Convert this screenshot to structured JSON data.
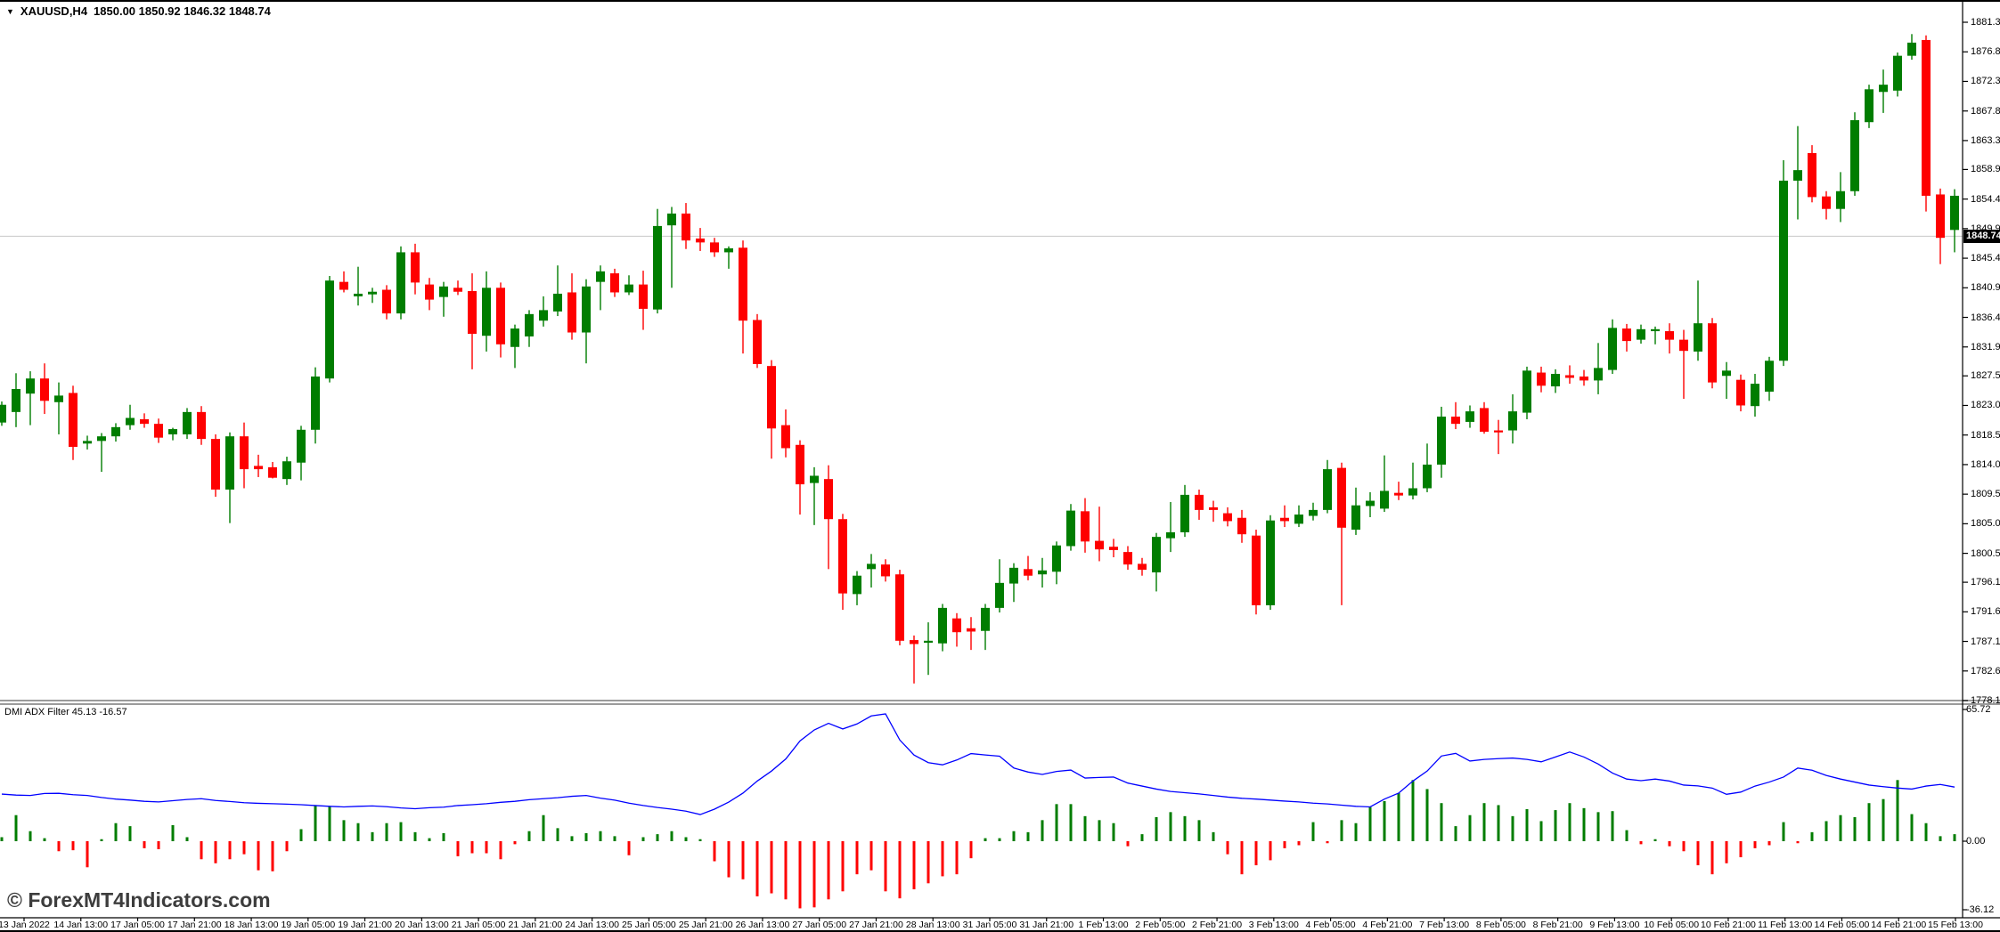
{
  "header": {
    "dropdown_icon": "▼",
    "symbol_label": "XAUUSD,H4",
    "ohlc": "1850.00 1850.92 1846.32 1848.74"
  },
  "watermark": {
    "text": "© ForexMT4Indicators.com"
  },
  "indicator_panel": {
    "label": "DMI ADX Filter",
    "adx_value": "45.13",
    "dmi_value": "-16.57",
    "axis_ticks": [
      "65.72",
      "0.00",
      "-36.12"
    ]
  },
  "price_axis": {
    "current_price_label": "1848.74",
    "ticks": [
      "1881.30",
      "1876.80",
      "1872.30",
      "1867.80",
      "1863.30",
      "1858.90",
      "1854.40",
      "1849.90",
      "1845.40",
      "1840.90",
      "1836.40",
      "1831.90",
      "1827.50",
      "1823.00",
      "1818.50",
      "1814.00",
      "1809.50",
      "1805.00",
      "1800.50",
      "1796.10",
      "1791.60",
      "1787.10",
      "1782.60",
      "1778.10"
    ]
  },
  "time_axis": {
    "ticks": [
      "13 Jan 2022",
      "14 Jan 13:00",
      "17 Jan 05:00",
      "17 Jan 21:00",
      "18 Jan 13:00",
      "19 Jan 05:00",
      "19 Jan 21:00",
      "20 Jan 13:00",
      "21 Jan 05:00",
      "21 Jan 21:00",
      "24 Jan 13:00",
      "25 Jan 05:00",
      "25 Jan 21:00",
      "26 Jan 13:00",
      "27 Jan 05:00",
      "27 Jan 21:00",
      "28 Jan 13:00",
      "31 Jan 05:00",
      "31 Jan 21:00",
      "1 Feb 13:00",
      "2 Feb 05:00",
      "2 Feb 21:00",
      "3 Feb 13:00",
      "4 Feb 05:00",
      "4 Feb 21:00",
      "7 Feb 13:00",
      "8 Feb 05:00",
      "8 Feb 21:00",
      "9 Feb 13:00",
      "10 Feb 05:00",
      "10 Feb 21:00",
      "11 Feb 13:00",
      "14 Feb 05:00",
      "14 Feb 21:00",
      "15 Feb 13:00"
    ]
  },
  "colors": {
    "bull": "#007d00",
    "bear": "#fe0000",
    "adx_line": "#0000ff",
    "dmi_pos": "#007d00",
    "dmi_neg": "#fe0000",
    "current_price_line": "#c8c8c8",
    "axis_line": "#000000",
    "separator": "#7a7a7a"
  },
  "chart_data": {
    "type": "candlestick",
    "title": "XAUUSD,H4 1850.00 1850.92 1846.32 1848.74",
    "symbol": "XAUUSD",
    "timeframe": "H4",
    "current_bar": {
      "open": 1850.0,
      "high": 1850.92,
      "low": 1846.32,
      "close": 1848.74
    },
    "current_price": 1848.74,
    "price_axis_range": [
      1778.1,
      1881.3
    ],
    "indicator_axis_range": [
      -36.12,
      65.72
    ],
    "indicator_name": "DMI ADX Filter",
    "indicator_values": [
      45.13,
      -16.57
    ],
    "legend_position": "top-left",
    "grid": false,
    "candles": [
      [
        1820.4,
        1823.6,
        1819.9,
        1823.1
      ],
      [
        1822.0,
        1827.9,
        1819.7,
        1825.5
      ],
      [
        1824.8,
        1828.2,
        1820.0,
        1827.1
      ],
      [
        1827.1,
        1829.4,
        1821.7,
        1823.7
      ],
      [
        1823.5,
        1826.5,
        1818.6,
        1824.5
      ],
      [
        1824.9,
        1826.0,
        1814.7,
        1816.7
      ],
      [
        1817.2,
        1818.4,
        1816.3,
        1817.6
      ],
      [
        1817.6,
        1818.8,
        1812.9,
        1818.3
      ],
      [
        1818.3,
        1820.3,
        1817.5,
        1819.7
      ],
      [
        1820.0,
        1823.1,
        1819.3,
        1821.1
      ],
      [
        1820.9,
        1821.8,
        1819.6,
        1820.2
      ],
      [
        1820.2,
        1821.0,
        1817.3,
        1818.1
      ],
      [
        1818.6,
        1819.6,
        1817.7,
        1819.4
      ],
      [
        1818.6,
        1822.6,
        1817.9,
        1822.0
      ],
      [
        1822.0,
        1822.9,
        1817.0,
        1817.9
      ],
      [
        1817.9,
        1818.6,
        1809.1,
        1810.2
      ],
      [
        1810.2,
        1818.9,
        1805.1,
        1818.3
      ],
      [
        1818.3,
        1820.4,
        1810.4,
        1813.3
      ],
      [
        1813.8,
        1815.5,
        1812.1,
        1813.3
      ],
      [
        1813.6,
        1814.4,
        1811.9,
        1812.0
      ],
      [
        1811.8,
        1815.2,
        1810.9,
        1814.5
      ],
      [
        1814.3,
        1819.9,
        1811.6,
        1819.3
      ],
      [
        1819.3,
        1828.8,
        1817.2,
        1827.4
      ],
      [
        1827.1,
        1842.7,
        1826.5,
        1842.0
      ],
      [
        1841.8,
        1843.4,
        1840.2,
        1840.6
      ],
      [
        1839.6,
        1844.1,
        1838.2,
        1840.0
      ],
      [
        1839.9,
        1840.9,
        1838.6,
        1840.3
      ],
      [
        1840.6,
        1841.3,
        1836.1,
        1837.0
      ],
      [
        1837.0,
        1847.2,
        1836.1,
        1846.3
      ],
      [
        1846.3,
        1847.6,
        1839.9,
        1841.7
      ],
      [
        1841.4,
        1842.4,
        1837.5,
        1839.1
      ],
      [
        1839.5,
        1841.8,
        1836.5,
        1841.1
      ],
      [
        1840.9,
        1842.0,
        1839.8,
        1840.3
      ],
      [
        1840.4,
        1843.1,
        1828.5,
        1833.9
      ],
      [
        1833.6,
        1843.4,
        1831.2,
        1840.9
      ],
      [
        1840.9,
        1841.7,
        1830.3,
        1832.3
      ],
      [
        1831.9,
        1835.3,
        1828.7,
        1834.7
      ],
      [
        1833.5,
        1837.5,
        1831.9,
        1836.9
      ],
      [
        1835.9,
        1839.6,
        1835.0,
        1837.5
      ],
      [
        1837.3,
        1844.3,
        1836.6,
        1840.0
      ],
      [
        1840.2,
        1843.1,
        1833.0,
        1834.1
      ],
      [
        1834.1,
        1842.2,
        1829.4,
        1841.1
      ],
      [
        1841.8,
        1844.3,
        1837.5,
        1843.4
      ],
      [
        1843.1,
        1843.8,
        1839.5,
        1840.2
      ],
      [
        1840.2,
        1842.8,
        1839.8,
        1841.4
      ],
      [
        1841.4,
        1843.5,
        1834.5,
        1837.7
      ],
      [
        1837.6,
        1852.9,
        1837.0,
        1850.3
      ],
      [
        1850.4,
        1853.2,
        1840.9,
        1852.2
      ],
      [
        1852.2,
        1853.8,
        1846.8,
        1848.1
      ],
      [
        1848.4,
        1850.0,
        1846.5,
        1847.8
      ],
      [
        1847.8,
        1848.5,
        1845.6,
        1846.3
      ],
      [
        1846.3,
        1847.2,
        1843.8,
        1846.9
      ],
      [
        1847.0,
        1848.1,
        1830.9,
        1835.9
      ],
      [
        1836.0,
        1836.9,
        1828.7,
        1829.3
      ],
      [
        1829.0,
        1829.9,
        1814.9,
        1819.5
      ],
      [
        1820.0,
        1822.4,
        1815.1,
        1816.5
      ],
      [
        1817.0,
        1817.7,
        1806.4,
        1811.0
      ],
      [
        1811.2,
        1813.6,
        1804.8,
        1812.3
      ],
      [
        1811.8,
        1813.9,
        1798.1,
        1805.7
      ],
      [
        1805.7,
        1806.5,
        1791.9,
        1794.4
      ],
      [
        1794.3,
        1797.8,
        1792.6,
        1797.1
      ],
      [
        1798.1,
        1800.4,
        1795.3,
        1798.9
      ],
      [
        1798.8,
        1799.6,
        1796.2,
        1797.0
      ],
      [
        1797.3,
        1798.0,
        1786.5,
        1787.2
      ],
      [
        1787.3,
        1788.0,
        1780.7,
        1786.7
      ],
      [
        1786.9,
        1790.0,
        1782.0,
        1787.2
      ],
      [
        1786.8,
        1792.8,
        1785.6,
        1792.2
      ],
      [
        1790.6,
        1791.4,
        1786.3,
        1788.5
      ],
      [
        1789.1,
        1790.8,
        1785.8,
        1788.6
      ],
      [
        1788.7,
        1792.8,
        1785.8,
        1792.2
      ],
      [
        1792.2,
        1799.6,
        1791.5,
        1796.0
      ],
      [
        1795.9,
        1799.0,
        1793.1,
        1798.3
      ],
      [
        1798.1,
        1800.1,
        1796.4,
        1797.1
      ],
      [
        1797.3,
        1799.8,
        1795.3,
        1797.9
      ],
      [
        1797.7,
        1802.3,
        1795.8,
        1801.7
      ],
      [
        1801.6,
        1808.0,
        1800.9,
        1807.0
      ],
      [
        1806.9,
        1808.9,
        1800.6,
        1802.3
      ],
      [
        1802.4,
        1807.6,
        1799.3,
        1801.1
      ],
      [
        1801.5,
        1802.7,
        1799.9,
        1801.0
      ],
      [
        1800.7,
        1801.6,
        1798.0,
        1798.8
      ],
      [
        1798.9,
        1799.8,
        1797.1,
        1798.0
      ],
      [
        1797.6,
        1803.6,
        1794.7,
        1803.0
      ],
      [
        1802.8,
        1808.3,
        1800.7,
        1803.7
      ],
      [
        1803.7,
        1810.9,
        1803.0,
        1809.4
      ],
      [
        1809.4,
        1810.2,
        1805.6,
        1807.1
      ],
      [
        1807.5,
        1808.5,
        1805.3,
        1807.1
      ],
      [
        1806.6,
        1807.5,
        1804.6,
        1805.4
      ],
      [
        1805.9,
        1807.1,
        1802.1,
        1803.4
      ],
      [
        1803.2,
        1804.1,
        1791.2,
        1792.6
      ],
      [
        1792.6,
        1806.3,
        1791.9,
        1805.5
      ],
      [
        1805.9,
        1807.8,
        1804.5,
        1805.4
      ],
      [
        1805.0,
        1807.8,
        1804.5,
        1806.4
      ],
      [
        1806.2,
        1808.2,
        1805.5,
        1807.1
      ],
      [
        1807.1,
        1814.7,
        1806.6,
        1813.3
      ],
      [
        1813.5,
        1814.3,
        1792.6,
        1804.4
      ],
      [
        1804.1,
        1810.5,
        1803.3,
        1807.8
      ],
      [
        1807.7,
        1809.8,
        1806.0,
        1808.5
      ],
      [
        1807.3,
        1815.4,
        1806.8,
        1810.0
      ],
      [
        1809.7,
        1811.4,
        1808.6,
        1809.3
      ],
      [
        1809.3,
        1814.3,
        1808.7,
        1810.4
      ],
      [
        1810.4,
        1817.2,
        1809.8,
        1814.0
      ],
      [
        1814.0,
        1822.8,
        1812.0,
        1821.3
      ],
      [
        1821.3,
        1823.5,
        1819.4,
        1820.2
      ],
      [
        1820.5,
        1823.0,
        1819.6,
        1822.1
      ],
      [
        1822.6,
        1823.5,
        1818.7,
        1819.0
      ],
      [
        1819.2,
        1820.8,
        1815.6,
        1818.9
      ],
      [
        1819.2,
        1824.7,
        1817.2,
        1822.1
      ],
      [
        1821.9,
        1828.9,
        1820.9,
        1828.3
      ],
      [
        1828.0,
        1828.9,
        1825.0,
        1826.0
      ],
      [
        1825.9,
        1828.5,
        1824.9,
        1827.8
      ],
      [
        1827.6,
        1829.1,
        1826.3,
        1827.2
      ],
      [
        1827.4,
        1828.4,
        1826.0,
        1826.8
      ],
      [
        1826.8,
        1832.5,
        1824.7,
        1828.7
      ],
      [
        1828.4,
        1836.1,
        1827.8,
        1834.8
      ],
      [
        1834.7,
        1835.4,
        1831.2,
        1832.8
      ],
      [
        1833.0,
        1835.3,
        1832.4,
        1834.6
      ],
      [
        1834.3,
        1835.0,
        1832.3,
        1834.6
      ],
      [
        1834.3,
        1835.5,
        1830.9,
        1833.0
      ],
      [
        1833.0,
        1834.5,
        1824.0,
        1831.3
      ],
      [
        1831.2,
        1842.0,
        1829.8,
        1835.5
      ],
      [
        1835.5,
        1836.3,
        1825.6,
        1826.5
      ],
      [
        1827.5,
        1829.6,
        1824.0,
        1828.3
      ],
      [
        1826.9,
        1827.7,
        1822.1,
        1823.0
      ],
      [
        1822.9,
        1827.8,
        1821.3,
        1826.3
      ],
      [
        1825.1,
        1830.4,
        1823.7,
        1829.8
      ],
      [
        1829.8,
        1860.3,
        1829.0,
        1857.2
      ],
      [
        1857.2,
        1865.5,
        1851.3,
        1858.8
      ],
      [
        1861.4,
        1862.6,
        1853.9,
        1854.7
      ],
      [
        1854.8,
        1855.6,
        1851.3,
        1852.9
      ],
      [
        1852.9,
        1858.5,
        1850.9,
        1855.6
      ],
      [
        1855.6,
        1867.6,
        1854.9,
        1866.4
      ],
      [
        1866.1,
        1871.8,
        1865.2,
        1871.1
      ],
      [
        1870.7,
        1874.1,
        1867.5,
        1871.8
      ],
      [
        1870.9,
        1876.7,
        1870.0,
        1876.2
      ],
      [
        1876.2,
        1879.5,
        1875.6,
        1878.2
      ],
      [
        1878.6,
        1879.3,
        1852.5,
        1854.9
      ],
      [
        1855.1,
        1856.0,
        1844.5,
        1848.5
      ],
      [
        1849.7,
        1855.9,
        1846.3,
        1854.9
      ]
    ],
    "adx_line": [
      23.5,
      23.0,
      22.8,
      23.8,
      23.9,
      23.2,
      22.8,
      21.8,
      21.0,
      20.5,
      19.9,
      19.6,
      20.2,
      20.8,
      21.2,
      20.3,
      19.8,
      19.2,
      18.9,
      18.7,
      18.5,
      18.2,
      17.8,
      17.4,
      17.1,
      17.4,
      17.6,
      17.2,
      16.6,
      16.2,
      16.7,
      17.0,
      17.8,
      18.2,
      18.7,
      19.4,
      19.9,
      20.7,
      21.2,
      21.7,
      22.4,
      22.8,
      21.5,
      20.5,
      19.0,
      17.8,
      16.8,
      16.0,
      15.0,
      13.3,
      16.0,
      19.5,
      24.0,
      30.0,
      35.0,
      41.0,
      50.0,
      55.5,
      58.8,
      56.0,
      58.5,
      62.5,
      63.5,
      50.5,
      43.0,
      39.2,
      38.1,
      40.5,
      43.7,
      43.0,
      42.4,
      36.5,
      34.5,
      33.3,
      34.8,
      35.5,
      31.5,
      31.8,
      32.0,
      29.0,
      27.5,
      26.0,
      24.8,
      24.2,
      23.6,
      22.8,
      22.0,
      21.4,
      21.0,
      20.5,
      20.0,
      19.6,
      19.0,
      18.6,
      18.0,
      17.4,
      17.1,
      21.0,
      24.0,
      30.0,
      35.0,
      42.5,
      43.8,
      40.0,
      40.8,
      41.2,
      41.5,
      40.8,
      39.6,
      42.0,
      44.5,
      42.0,
      38.5,
      34.0,
      31.0,
      30.2,
      31.0,
      30.0,
      28.0,
      27.6,
      26.5,
      23.4,
      24.5,
      27.5,
      29.5,
      32.0,
      36.5,
      35.4,
      32.8,
      31.0,
      29.5,
      28.0,
      27.2,
      26.5,
      26.0,
      27.5,
      28.3,
      27.0
    ],
    "dmi_histogram": [
      2,
      13,
      5,
      1.5,
      -5,
      -4.5,
      -13,
      1,
      9,
      7.5,
      -3.5,
      -4,
      8,
      2,
      -9,
      -11,
      -9,
      -6.5,
      -14.5,
      -15,
      -5,
      6,
      18,
      17.5,
      10.5,
      9,
      4.5,
      9,
      9.5,
      4.5,
      1.5,
      4,
      -7.5,
      -6,
      -6,
      -9,
      -1.5,
      5,
      13,
      6.5,
      2.5,
      4,
      5,
      2.5,
      -7,
      2,
      3.5,
      5,
      2,
      1,
      -10,
      -18,
      -19,
      -27.5,
      -26,
      -29,
      -33.5,
      -33,
      -29,
      -25,
      -16.5,
      -14.5,
      -25,
      -28.5,
      -24,
      -21,
      -17.5,
      -16.5,
      -8.5,
      1.5,
      1.5,
      5,
      4.5,
      10.5,
      18.5,
      18.5,
      12.5,
      10.5,
      9,
      -2.5,
      3.5,
      12,
      14.5,
      12.5,
      10.5,
      4.5,
      -6.5,
      -16.5,
      -12,
      -9.5,
      -3.5,
      -2,
      9.5,
      -1,
      10.5,
      9,
      17,
      20,
      24,
      30.5,
      26,
      19,
      7.5,
      13,
      19,
      18,
      12.5,
      16,
      10,
      15.5,
      19,
      16.5,
      14.5,
      15,
      5.5,
      -1.5,
      1,
      -2.5,
      -5,
      -12,
      -16.5,
      -11,
      -8,
      -3.5,
      -2,
      9.5,
      -1,
      4.5,
      10,
      13,
      12,
      19,
      21,
      30.5,
      13.5,
      9,
      2.5,
      3.5
    ]
  }
}
